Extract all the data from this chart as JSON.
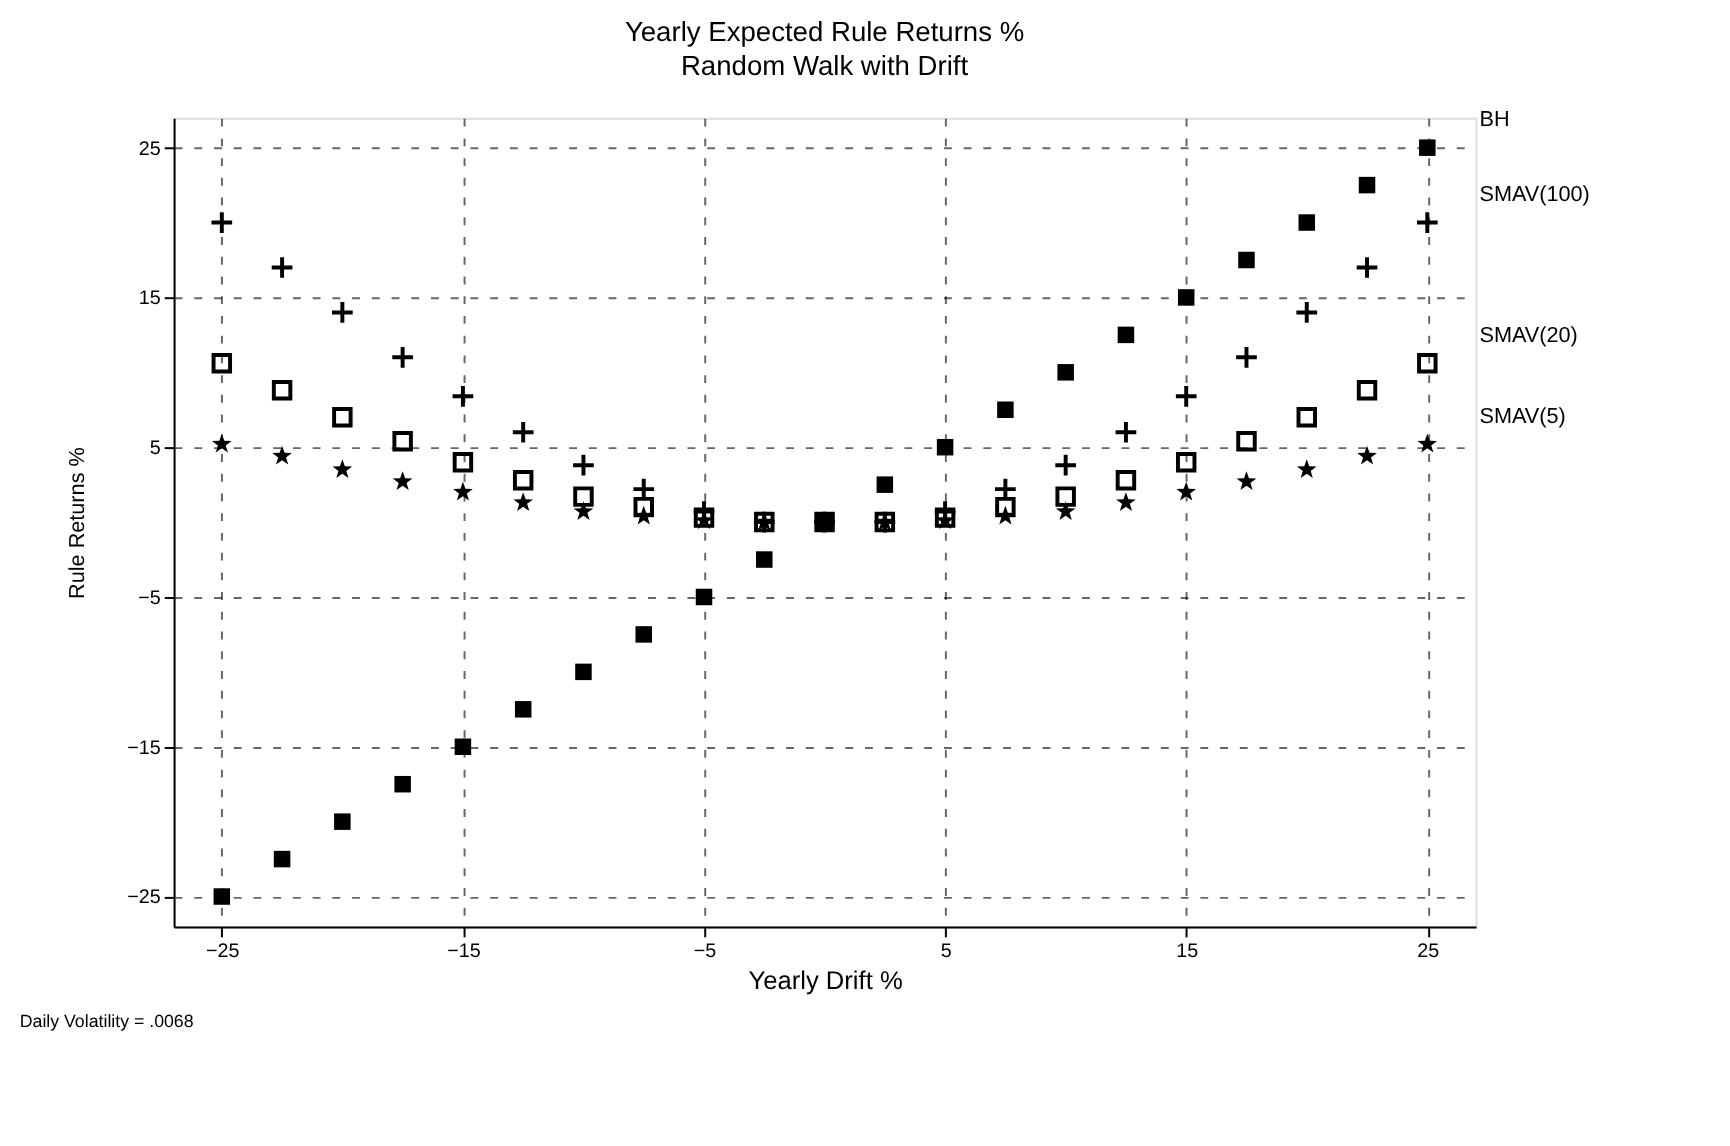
{
  "chart_data": {
    "type": "scatter",
    "title": "Yearly Expected Rule Returns %",
    "subtitle": "Random Walk with Drift",
    "xlabel": "Yearly Drift %",
    "ylabel": "Rule Returns %",
    "annotations": [
      "Daily Volatility = .0068"
    ],
    "x": [
      -25,
      -22.5,
      -20,
      -17.5,
      -15,
      -12.5,
      -10,
      -7.5,
      -5,
      -2.5,
      0,
      2.5,
      5,
      7.5,
      10,
      12.5,
      15,
      17.5,
      20,
      22.5,
      25
    ],
    "series": [
      {
        "name": "BH",
        "color": "#000000",
        "marker": "square",
        "values": [
          -25,
          -22.5,
          -20,
          -17.5,
          -15,
          -12.5,
          -10,
          -7.5,
          -5,
          -2.5,
          0,
          2.5,
          5,
          7.5,
          10,
          12.5,
          15,
          17.5,
          20,
          22.5,
          25
        ]
      },
      {
        "name": "SMAV(100)",
        "color": "#000000",
        "marker": "cross",
        "values": [
          20,
          17,
          14,
          11,
          8.4,
          6,
          3.8,
          2.2,
          0.7,
          0,
          0,
          0,
          0.7,
          2.2,
          3.8,
          6,
          8.4,
          11,
          14,
          17,
          20
        ]
      },
      {
        "name": "SMAV(20)",
        "color": "#000000",
        "marker": "square",
        "values": [
          10.6,
          8.8,
          7,
          5.4,
          4,
          2.8,
          1.7,
          1,
          0.3,
          0,
          0,
          0,
          0.3,
          1,
          1.7,
          2.8,
          4,
          5.4,
          7,
          8.8,
          10.6
        ]
      },
      {
        "name": "SMAV(5)",
        "color": "#000000",
        "marker": "star",
        "values": [
          5.2,
          4.4,
          3.5,
          2.7,
          2,
          1.3,
          0.7,
          0.4,
          0.1,
          0,
          null,
          0,
          0.1,
          0.4,
          0.7,
          1.3,
          2,
          2.7,
          3.5,
          4.4,
          5.2
        ]
      }
    ],
    "xlim": [
      -27,
      27
    ],
    "ylim": [
      -27,
      27
    ],
    "xticks": [
      -25,
      -15,
      -5,
      5,
      15,
      25
    ],
    "yticks": [
      -25,
      -15,
      -5,
      5,
      15,
      25
    ],
    "grid": true,
    "legend": false
  }
}
